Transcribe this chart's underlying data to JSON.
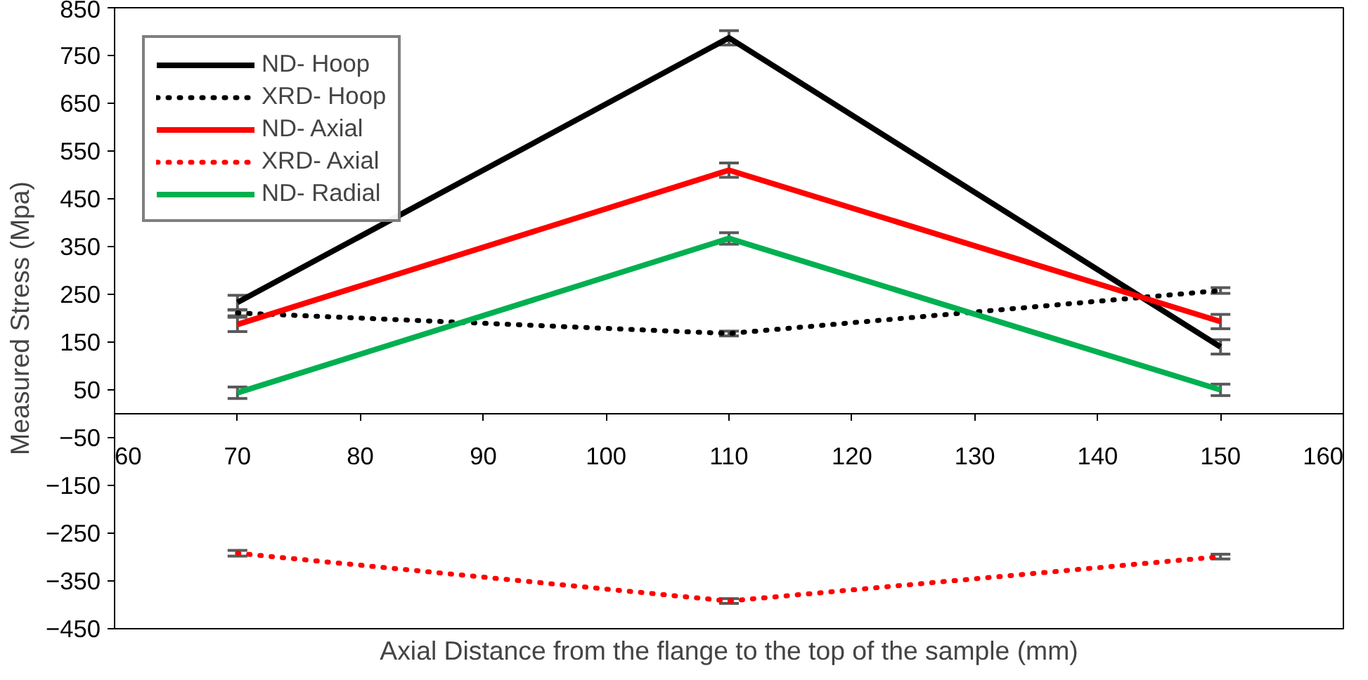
{
  "chart_data": {
    "type": "line",
    "xlabel": "Axial Distance from the flange to the top of the sample (mm)",
    "ylabel": "Measured Stress (Mpa)",
    "x": [
      70,
      110,
      150
    ],
    "xlim": [
      60,
      160
    ],
    "xticks": [
      60,
      70,
      80,
      90,
      100,
      110,
      120,
      130,
      140,
      150,
      160
    ],
    "ylim": [
      -450,
      850
    ],
    "yticks": [
      -450,
      -350,
      -250,
      -150,
      -50,
      50,
      150,
      250,
      350,
      450,
      550,
      650,
      750,
      850
    ],
    "grid": false,
    "legend": "top left",
    "marker": "none",
    "series": [
      {
        "name": "ND- Hoop",
        "color": "#000000",
        "line_style": "solid",
        "values": [
          233,
          787,
          140
        ],
        "errors": [
          15,
          15,
          15
        ]
      },
      {
        "name": "XRD- Hoop",
        "color": "#000000",
        "line_style": "dotted",
        "values": [
          211,
          168,
          258
        ],
        "errors": [
          6,
          5,
          6
        ]
      },
      {
        "name": "ND- Axial",
        "color": "#ff0000",
        "line_style": "solid",
        "values": [
          187,
          510,
          193
        ],
        "errors": [
          15,
          15,
          15
        ]
      },
      {
        "name": "XRD- Axial",
        "color": "#ff0000",
        "line_style": "dotted",
        "values": [
          -292,
          -392,
          -299
        ],
        "errors": [
          6,
          5,
          5
        ]
      },
      {
        "name": "ND- Radial",
        "color": "#00b050",
        "line_style": "solid",
        "values": [
          44,
          367,
          50
        ],
        "errors": [
          12,
          12,
          12
        ]
      }
    ]
  }
}
